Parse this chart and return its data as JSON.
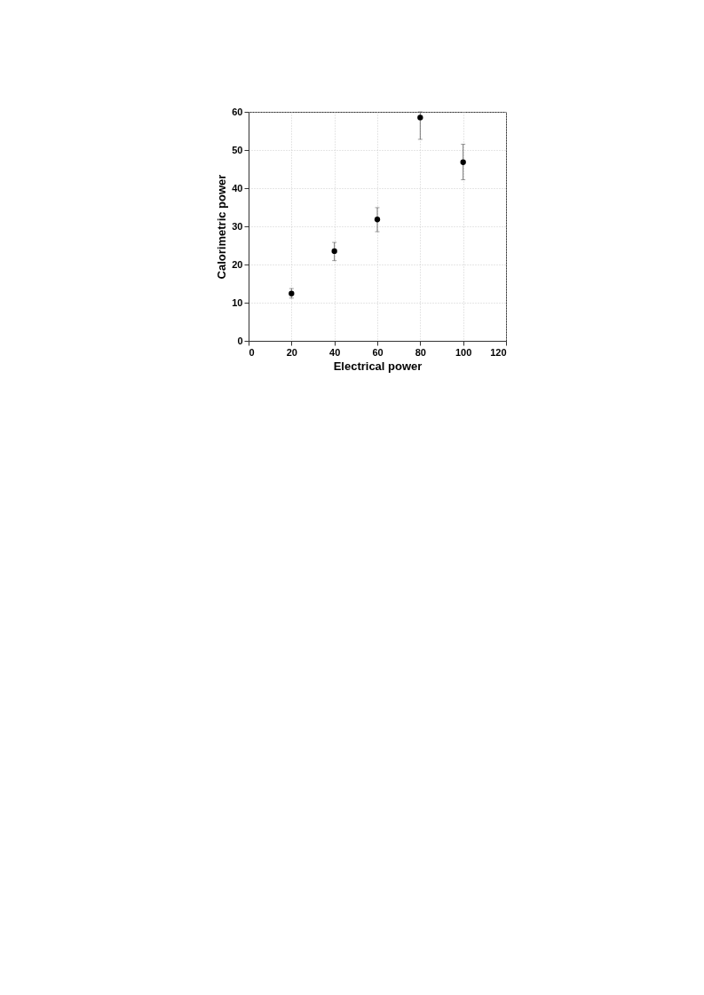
{
  "chart_data": {
    "type": "scatter",
    "xlabel": "Electrical power",
    "ylabel": "Calorimetric power",
    "x": [
      20,
      40,
      60,
      80,
      100
    ],
    "series": [
      {
        "color": "#000000",
        "values": [
          12.4,
          23.5,
          31.8,
          58.5,
          46.8
        ],
        "errors": [
          [
            11.2,
            13.7
          ],
          [
            21.0,
            25.8
          ],
          [
            28.6,
            34.9
          ],
          [
            52.8,
            60
          ],
          [
            42.2,
            51.5
          ]
        ]
      }
    ],
    "xlim": [
      0,
      120
    ],
    "xticks": [
      0,
      20,
      40,
      60,
      80,
      100,
      120
    ],
    "ylim": [
      0,
      60
    ],
    "yticks": [
      0,
      10,
      20,
      30,
      40,
      50,
      60
    ],
    "grid": true,
    "marker": "circle"
  }
}
